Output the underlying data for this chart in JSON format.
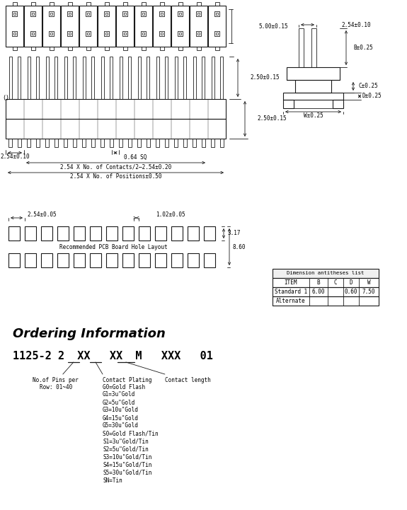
{
  "bg_color": "#ffffff",
  "line_color": "#1a1a1a",
  "title_ordering": "Ordering Information",
  "table_title": "Dimension antitheses list",
  "table_headers": [
    "ITEM",
    "B",
    "C",
    "D",
    "W"
  ],
  "table_rows": [
    [
      "Standard 1",
      "6.00",
      "",
      "0.60",
      "7.50"
    ],
    [
      "Alternate",
      "",
      "",
      "",
      ""
    ]
  ],
  "dim_5mm": "5.00±0.15",
  "dim_2_54_010": "2.54±0.10",
  "dim_B": "B±0.25",
  "dim_C": "C±0.25",
  "dim_D": "D±0.25",
  "dim_W": "W±0.25",
  "dim_250_015a": "2.50±0.15",
  "dim_250_015b": "2.50±0.15",
  "dim_254_010": "2.54±0.10",
  "dim_064": "0.64 SQ",
  "dim_contacts": "2.54 X No. of Contacts/2–2.54±0.20",
  "dim_positions": "2.54 X No. of Positions±0.50",
  "dim_254_005": "2.54±0.05",
  "dim_102_005": "1.02±0.05",
  "dim_317": "3.17",
  "dim_860": "8.60",
  "pcb_label": "Recommended PCB Board Hole Layout",
  "ordering_pins": [
    "No.of Pins per",
    "Row: 01~40"
  ],
  "contact_plating_label": "Contact Plating",
  "contact_length_label": "Contact length",
  "contact_plating_items": [
    "G0=Gold Flash",
    "G1=3u\"Gold",
    "G2=5u\"Gold",
    "G3=10u\"Gold",
    "G4=15u\"Gold",
    "G5=30u\"Gold",
    "S0=Gold Flash/Tin",
    "S1=3u\"Gold/Tin",
    "S2=5u\"Gold/Tin",
    "S3=10u\"Gold/Tin",
    "S4=15u\"Gold/Tin",
    "S5=30u\"Gold/Tin",
    "SN=Tin"
  ]
}
